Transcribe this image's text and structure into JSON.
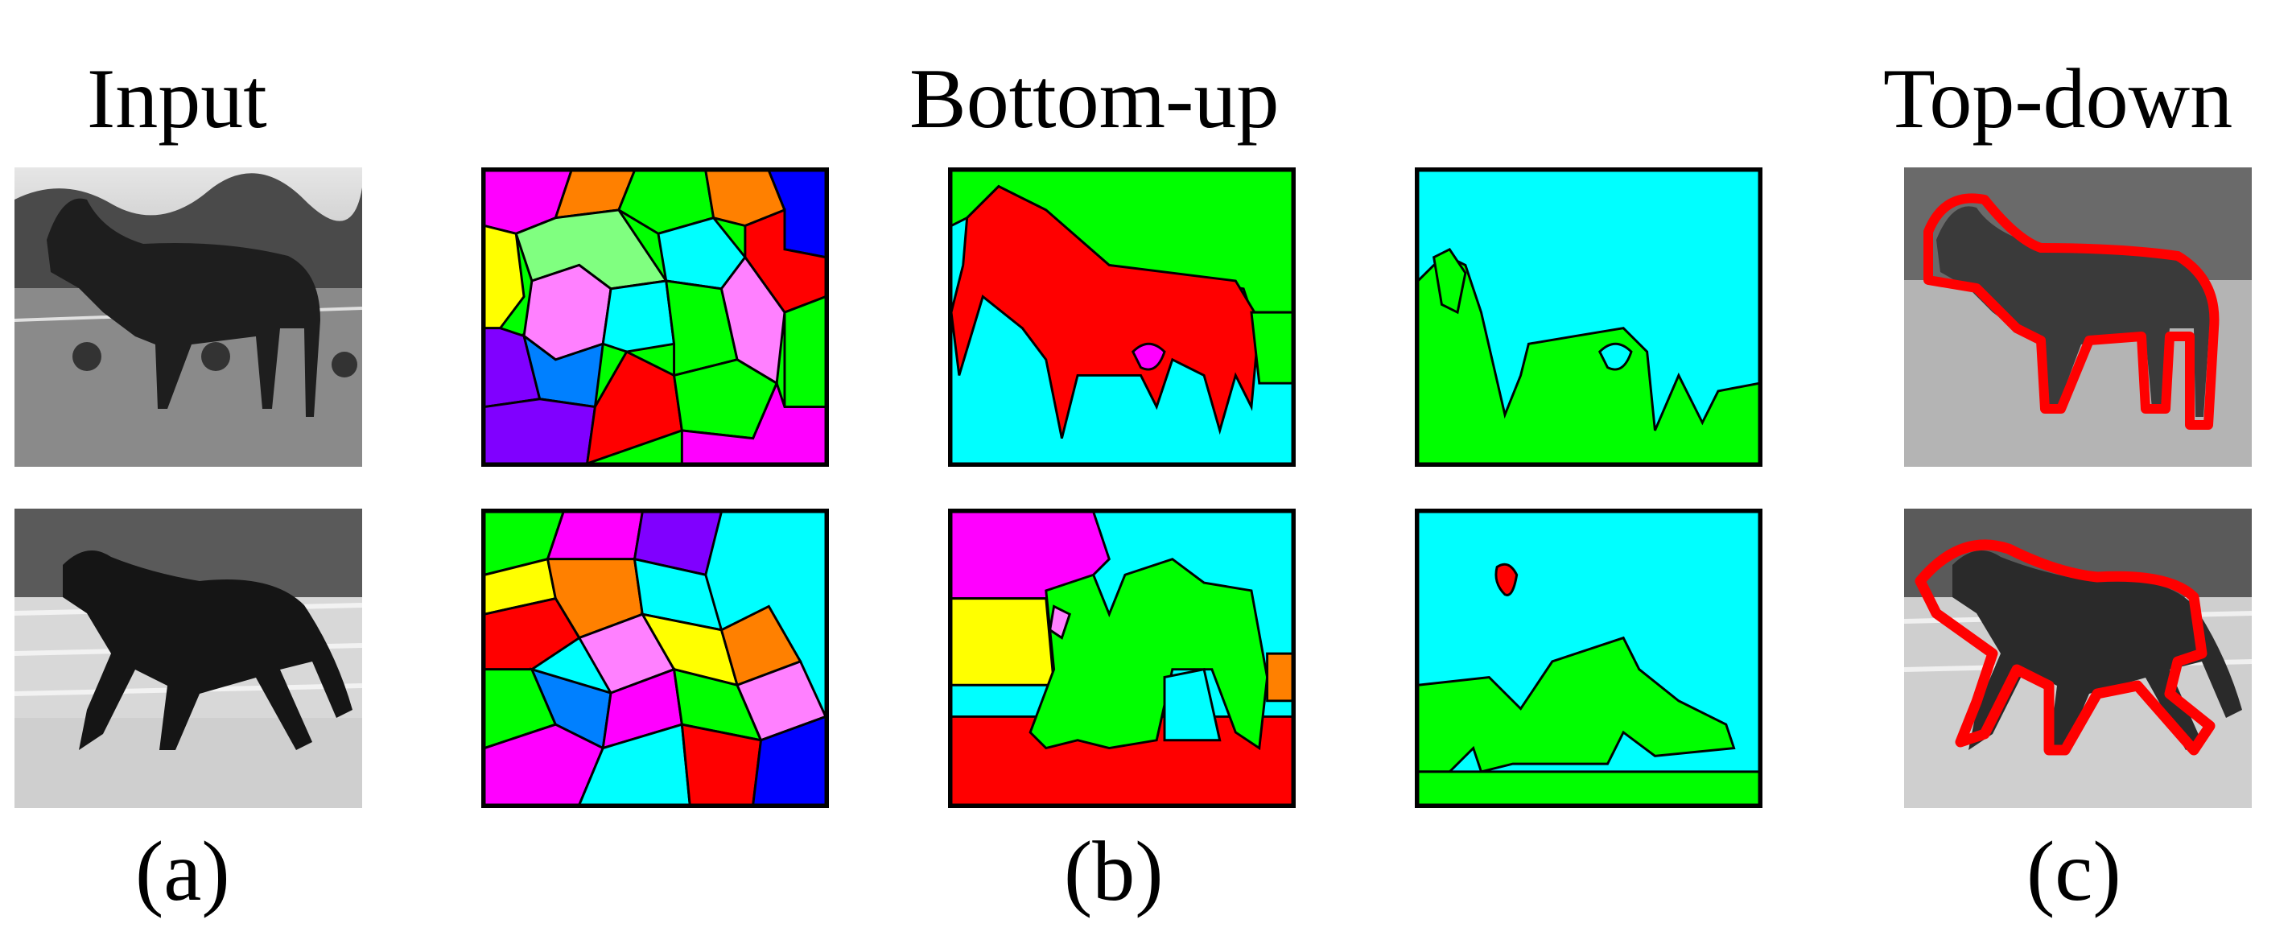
{
  "headings": {
    "input": "Input",
    "bottom_up": "Bottom-up",
    "top_down": "Top-down"
  },
  "captions": {
    "a": "(a)",
    "b": "(b)",
    "c": "(c)"
  },
  "colors": {
    "red": "#ff0000",
    "green": "#00ff00",
    "cyan": "#00ffff",
    "magenta": "#ff00ff",
    "blue": "#0000ff",
    "yellow": "#ffff00",
    "orange": "#ff8000",
    "violet": "#8000ff",
    "pink": "#ff80ff",
    "outline": "#000000",
    "contour": "#ff0000"
  },
  "rows": [
    {
      "label": "horse-standing"
    },
    {
      "label": "horse-trotting"
    }
  ]
}
